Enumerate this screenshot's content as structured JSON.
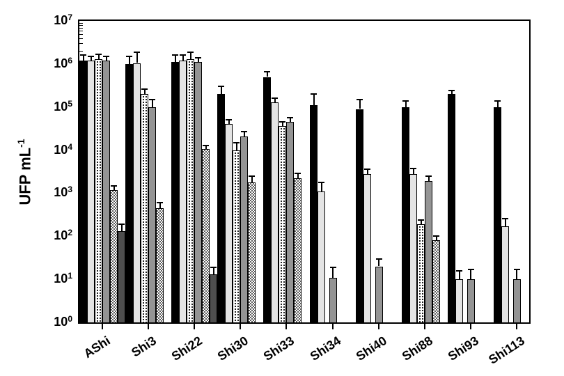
{
  "chart_data": {
    "type": "bar",
    "title": "",
    "yscale": "log",
    "ylabel": "UFP mL^-1",
    "ylabel_main": "UFP mL",
    "ylabel_sup": "-1",
    "ylim_exponents": [
      0,
      7
    ],
    "ytick_exponents": [
      0,
      1,
      2,
      3,
      4,
      5,
      6,
      7
    ],
    "grid": false,
    "legend": "none",
    "error_bars": "upper caps only",
    "colors": {
      "black": "#000000",
      "light": "#e4e4e4",
      "gray": "#949494",
      "dark": "#4e4e4e",
      "checker": "#5c5c5c",
      "stipple_dot": "#000000",
      "axis": "#000000",
      "background": "#ffffff"
    },
    "series_patterns": [
      {
        "key": "black",
        "fill": "solid black"
      },
      {
        "key": "light",
        "fill": "light gray"
      },
      {
        "key": "stipple",
        "fill": "white with fine black dot stipple"
      },
      {
        "key": "gray",
        "fill": "medium gray"
      },
      {
        "key": "checker",
        "fill": "fine gray-white checkerboard"
      },
      {
        "key": "dark",
        "fill": "dark gray"
      }
    ],
    "categories": [
      "AShi",
      "Shi3",
      "Shi22",
      "Shi30",
      "Shi33",
      "Shi34",
      "Shi40",
      "Shi88",
      "Shi93",
      "Shi113"
    ],
    "groups": [
      {
        "label": "AShi",
        "bars": [
          {
            "pattern": "black",
            "slot": 0,
            "value": 1200000.0,
            "err_top": 1600000.0
          },
          {
            "pattern": "light",
            "slot": 1,
            "value": 1200000.0,
            "err_top": 1500000.0
          },
          {
            "pattern": "stipple",
            "slot": 2,
            "value": 1300000.0,
            "err_top": 1700000.0
          },
          {
            "pattern": "gray",
            "slot": 3,
            "value": 1200000.0,
            "err_top": 1500000.0
          },
          {
            "pattern": "checker",
            "slot": 4,
            "value": 1200.0,
            "err_top": 1500.0
          },
          {
            "pattern": "dark",
            "slot": 5,
            "value": 130.0,
            "err_top": 190.0
          }
        ]
      },
      {
        "label": "Shi3",
        "bars": [
          {
            "pattern": "black",
            "slot": 0,
            "value": 1000000.0,
            "err_top": 1500000.0
          },
          {
            "pattern": "light",
            "slot": 1,
            "value": 1050000.0,
            "err_top": 1900000.0
          },
          {
            "pattern": "stipple",
            "slot": 2,
            "value": 200000.0,
            "err_top": 260000.0
          },
          {
            "pattern": "gray",
            "slot": 3,
            "value": 100000.0,
            "err_top": 150000.0
          },
          {
            "pattern": "checker",
            "slot": 4,
            "value": 450.0,
            "err_top": 600.0
          }
        ]
      },
      {
        "label": "Shi22",
        "bars": [
          {
            "pattern": "black",
            "slot": 0,
            "value": 1100000.0,
            "err_top": 1600000.0
          },
          {
            "pattern": "light",
            "slot": 1,
            "value": 1200000.0,
            "err_top": 1600000.0
          },
          {
            "pattern": "stipple",
            "slot": 2,
            "value": 1300000.0,
            "err_top": 1900000.0
          },
          {
            "pattern": "gray",
            "slot": 3,
            "value": 1100000.0,
            "err_top": 1400000.0
          },
          {
            "pattern": "checker",
            "slot": 4,
            "value": 10500.0,
            "err_top": 13000.0
          },
          {
            "pattern": "dark",
            "slot": 5,
            "value": 13.0,
            "err_top": 19.0
          }
        ]
      },
      {
        "label": "Shi30",
        "bars": [
          {
            "pattern": "black",
            "slot": 0,
            "value": 200000.0,
            "err_top": 300000.0
          },
          {
            "pattern": "light",
            "slot": 1,
            "value": 40000.0,
            "err_top": 50000.0
          },
          {
            "pattern": "stipple",
            "slot": 2,
            "value": 10000.0,
            "err_top": 15000.0
          },
          {
            "pattern": "gray",
            "slot": 3,
            "value": 21000.0,
            "err_top": 27000.0
          },
          {
            "pattern": "checker",
            "slot": 4,
            "value": 1800.0,
            "err_top": 2500.0
          }
        ]
      },
      {
        "label": "Shi33",
        "bars": [
          {
            "pattern": "black",
            "slot": 0,
            "value": 500000.0,
            "err_top": 650000.0
          },
          {
            "pattern": "light",
            "slot": 1,
            "value": 130000.0,
            "err_top": 160000.0
          },
          {
            "pattern": "stipple",
            "slot": 2,
            "value": 36000.0,
            "err_top": 46000.0
          },
          {
            "pattern": "gray",
            "slot": 3,
            "value": 45000.0,
            "err_top": 56000.0
          },
          {
            "pattern": "checker",
            "slot": 4,
            "value": 2200.0,
            "err_top": 2900.0
          }
        ]
      },
      {
        "label": "Shi34",
        "bars": [
          {
            "pattern": "black",
            "slot": 0,
            "value": 110000.0,
            "err_top": 200000.0
          },
          {
            "pattern": "light",
            "slot": 1,
            "value": 1100.0,
            "err_top": 1800.0
          },
          {
            "pattern": "gray",
            "slot": 2.5,
            "value": 11.0,
            "err_top": 19.0
          }
        ]
      },
      {
        "label": "Shi40",
        "bars": [
          {
            "pattern": "black",
            "slot": 0,
            "value": 90000.0,
            "err_top": 150000.0
          },
          {
            "pattern": "light",
            "slot": 1,
            "value": 2800.0,
            "err_top": 3600.0
          },
          {
            "pattern": "gray",
            "slot": 2.5,
            "value": 20.0,
            "err_top": 30.0
          }
        ]
      },
      {
        "label": "Shi88",
        "bars": [
          {
            "pattern": "black",
            "slot": 0,
            "value": 100000.0,
            "err_top": 140000.0
          },
          {
            "pattern": "light",
            "slot": 1,
            "value": 2800.0,
            "err_top": 3800.0
          },
          {
            "pattern": "stipple",
            "slot": 2,
            "value": 190.0,
            "err_top": 240.0
          },
          {
            "pattern": "gray",
            "slot": 3,
            "value": 1900.0,
            "err_top": 2500.0
          },
          {
            "pattern": "checker",
            "slot": 4,
            "value": 80.0,
            "err_top": 100.0
          }
        ]
      },
      {
        "label": "Shi93",
        "bars": [
          {
            "pattern": "black",
            "slot": 0,
            "value": 200000.0,
            "err_top": 240000.0
          },
          {
            "pattern": "light",
            "slot": 1,
            "value": 10.0,
            "err_top": 16.0
          },
          {
            "pattern": "gray",
            "slot": 2.5,
            "value": 10.0,
            "err_top": 17.0
          }
        ]
      },
      {
        "label": "Shi113",
        "bars": [
          {
            "pattern": "black",
            "slot": 0,
            "value": 100000.0,
            "err_top": 140000.0
          },
          {
            "pattern": "light",
            "slot": 1,
            "value": 170.0,
            "err_top": 260.0
          },
          {
            "pattern": "gray",
            "slot": 2.5,
            "value": 10.0,
            "err_top": 17.0
          }
        ]
      }
    ]
  }
}
